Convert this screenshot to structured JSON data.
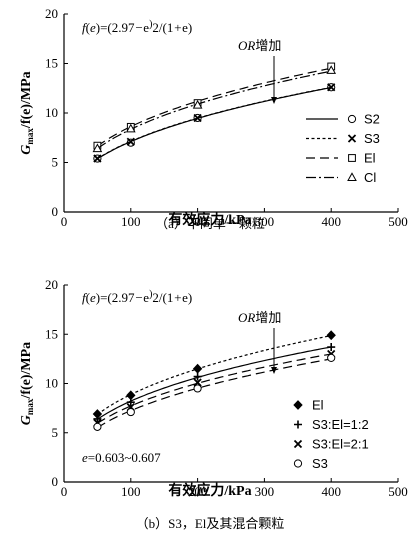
{
  "chart_data": [
    {
      "type": "scatter",
      "caption": "（a）不同单一颗粒",
      "xlabel": "有效应力/kPa",
      "ylabel": "Gmax/f(e)/MPa",
      "xlim": [
        0,
        500
      ],
      "ylim": [
        0,
        20
      ],
      "xticks": [
        0,
        100,
        200,
        300,
        400,
        500
      ],
      "yticks": [
        5,
        10,
        15,
        20
      ],
      "formula": "f(e)=(2.97−e)2/(1+e)",
      "arrow_label": "OR增加",
      "legend_position": "right",
      "series": [
        {
          "name": "S2",
          "marker": "circle-open",
          "line": "solid",
          "x": [
            50,
            100,
            200,
            400
          ],
          "y": [
            5.4,
            7.0,
            9.5,
            12.6
          ]
        },
        {
          "name": "S3",
          "marker": "x",
          "line": "dotted",
          "x": [
            50,
            100,
            200,
            400
          ],
          "y": [
            5.4,
            7.1,
            9.5,
            12.6
          ]
        },
        {
          "name": "El",
          "marker": "square-open",
          "line": "dashed",
          "x": [
            50,
            100,
            200,
            400
          ],
          "y": [
            6.7,
            8.6,
            11.0,
            14.7
          ]
        },
        {
          "name": "Cl",
          "marker": "triangle-open",
          "line": "dashdot",
          "x": [
            50,
            100,
            200,
            400
          ],
          "y": [
            6.4,
            8.4,
            10.8,
            14.3
          ]
        }
      ]
    },
    {
      "type": "scatter",
      "caption": "（b）S3，El及其混合颗粒",
      "xlabel": "有效应力/kPa",
      "ylabel": "Gmax/f(e)/MPa",
      "xlim": [
        0,
        500
      ],
      "ylim": [
        0,
        20
      ],
      "xticks": [
        0,
        100,
        200,
        300,
        400,
        500
      ],
      "yticks": [
        5,
        10,
        15,
        20
      ],
      "formula": "f(e)=(2.97−e)2/(1+e)",
      "arrow_label": "OR增加",
      "annotation": "e=0.603~0.607",
      "legend_position": "right",
      "series": [
        {
          "name": "El",
          "marker": "diamond-filled",
          "line": "dotted",
          "x": [
            50,
            100,
            200,
            400
          ],
          "y": [
            6.9,
            8.8,
            11.5,
            14.9
          ]
        },
        {
          "name": "S3:El=1:2",
          "marker": "plus",
          "line": "solid",
          "x": [
            50,
            100,
            200,
            400
          ],
          "y": [
            6.4,
            8.1,
            10.7,
            13.7
          ]
        },
        {
          "name": "S3:El=2:1",
          "marker": "x",
          "line": "dashed",
          "x": [
            50,
            100,
            200,
            400
          ],
          "y": [
            6.0,
            7.6,
            10.1,
            13.0
          ]
        },
        {
          "name": "S3",
          "marker": "circle-open",
          "line": "dashed",
          "x": [
            50,
            100,
            200,
            400
          ],
          "y": [
            5.6,
            7.1,
            9.5,
            12.6
          ]
        }
      ]
    }
  ]
}
